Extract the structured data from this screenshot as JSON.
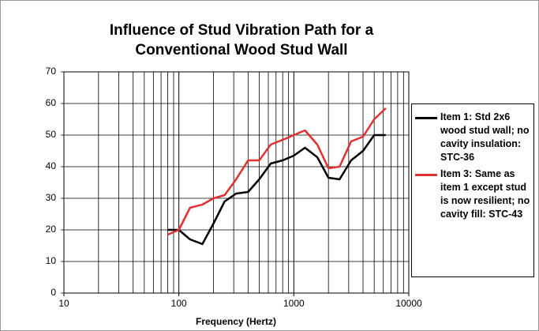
{
  "chart_data": {
    "type": "line",
    "title": "Influence of Stud Vibration Path for a",
    "subtitle": "Conventional Wood Stud Wall",
    "xlabel": "Frequency (Hertz)",
    "log_x": true,
    "x": [
      80,
      100,
      125,
      160,
      200,
      250,
      315,
      400,
      500,
      630,
      800,
      1000,
      1250,
      1600,
      2000,
      2500,
      3150,
      4000,
      5000,
      6300
    ],
    "series": [
      {
        "name": "Item 1: Std 2x6 wood stud wall; no cavity insulation: STC-36",
        "color": "#000000",
        "values": [
          20,
          20,
          17,
          15.5,
          22,
          29,
          31.5,
          32,
          36,
          41,
          42,
          43.5,
          46,
          43,
          36.5,
          36,
          42,
          45,
          50,
          50
        ]
      },
      {
        "name": "Item 3: Same as item 1 except stud is now resilient; no cavity fill: STC-43",
        "color": "#e03030",
        "values": [
          18.5,
          20,
          27,
          28,
          30,
          31,
          36,
          42,
          42,
          47,
          48.5,
          50,
          51.5,
          47,
          39.5,
          40,
          48,
          49.5,
          55,
          58.5
        ]
      }
    ],
    "xlim": [
      10,
      10000
    ],
    "xticks": [
      10,
      100,
      1000,
      10000
    ],
    "xgrid_minor": [
      20,
      30,
      40,
      50,
      60,
      70,
      80,
      90,
      200,
      300,
      400,
      500,
      600,
      700,
      800,
      900,
      2000,
      3000,
      4000,
      5000,
      6000,
      7000,
      8000,
      9000
    ],
    "ylim": [
      0,
      70
    ],
    "yticks": [
      0,
      10,
      20,
      30,
      40,
      50,
      60,
      70
    ],
    "grid": true,
    "legend": "right"
  }
}
